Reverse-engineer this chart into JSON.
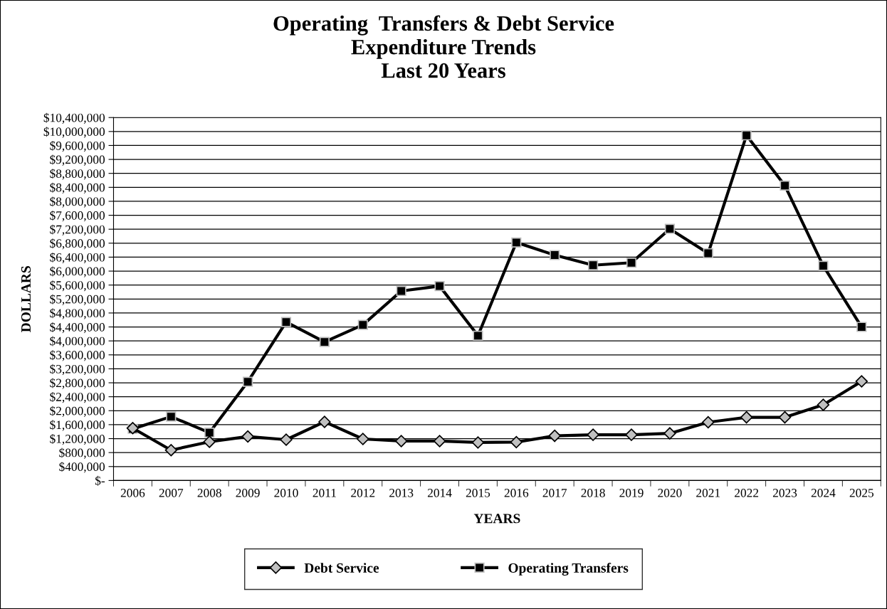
{
  "chart_data": {
    "type": "line",
    "title": "Operating  Transfers & Debt Service\nExpenditure Trends\nLast 20 Years",
    "xlabel": "YEARS",
    "ylabel": "DOLLARS",
    "categories": [
      "2006",
      "2007",
      "2008",
      "2009",
      "2010",
      "2011",
      "2012",
      "2013",
      "2014",
      "2015",
      "2016",
      "2017",
      "2018",
      "2019",
      "2020",
      "2021",
      "2022",
      "2023",
      "2024",
      "2025"
    ],
    "series": [
      {
        "name": "Debt Service",
        "color": "#000000",
        "marker": "diamond",
        "values": [
          1500000,
          870000,
          1110000,
          1260000,
          1170000,
          1680000,
          1190000,
          1130000,
          1130000,
          1090000,
          1100000,
          1280000,
          1310000,
          1310000,
          1350000,
          1670000,
          1810000,
          1810000,
          2170000,
          2840000
        ]
      },
      {
        "name": "Operating Transfers",
        "color": "#000000",
        "marker": "square",
        "values": [
          1480000,
          1830000,
          1370000,
          2830000,
          4540000,
          3970000,
          4460000,
          5430000,
          5570000,
          4150000,
          6820000,
          6460000,
          6170000,
          6240000,
          7210000,
          6510000,
          9890000,
          8450000,
          6150000,
          4400000
        ]
      }
    ],
    "ylim": [
      0,
      10400000
    ],
    "yticks": [
      {
        "value": 0,
        "label": "$-"
      },
      {
        "value": 400000,
        "label": "$400,000"
      },
      {
        "value": 800000,
        "label": "$800,000"
      },
      {
        "value": 1200000,
        "label": "$1,200,000"
      },
      {
        "value": 1600000,
        "label": "$1,600,000"
      },
      {
        "value": 2000000,
        "label": "$2,000,000"
      },
      {
        "value": 2400000,
        "label": "$2,400,000"
      },
      {
        "value": 2800000,
        "label": "$2,800,000"
      },
      {
        "value": 3200000,
        "label": "$3,200,000"
      },
      {
        "value": 3600000,
        "label": "$3,600,000"
      },
      {
        "value": 4000000,
        "label": "$4,000,000"
      },
      {
        "value": 4400000,
        "label": "$4,400,000"
      },
      {
        "value": 4800000,
        "label": "$4,800,000"
      },
      {
        "value": 5200000,
        "label": "$5,200,000"
      },
      {
        "value": 5600000,
        "label": "$5,600,000"
      },
      {
        "value": 6000000,
        "label": "$6,000,000"
      },
      {
        "value": 6400000,
        "label": "$6,400,000"
      },
      {
        "value": 6800000,
        "label": "$6,800,000"
      },
      {
        "value": 7200000,
        "label": "$7,200,000"
      },
      {
        "value": 7600000,
        "label": "$7,600,000"
      },
      {
        "value": 8000000,
        "label": "$8,000,000"
      },
      {
        "value": 8400000,
        "label": "$8,400,000"
      },
      {
        "value": 8800000,
        "label": "$8,800,000"
      },
      {
        "value": 9200000,
        "label": "$9,200,000"
      },
      {
        "value": 9600000,
        "label": "$9,600,000"
      },
      {
        "value": 10000000,
        "label": "$10,000,000"
      },
      {
        "value": 10400000,
        "label": "$10,400,000"
      }
    ],
    "grid": "y",
    "legend": "bottom",
    "line_style": "solid"
  }
}
